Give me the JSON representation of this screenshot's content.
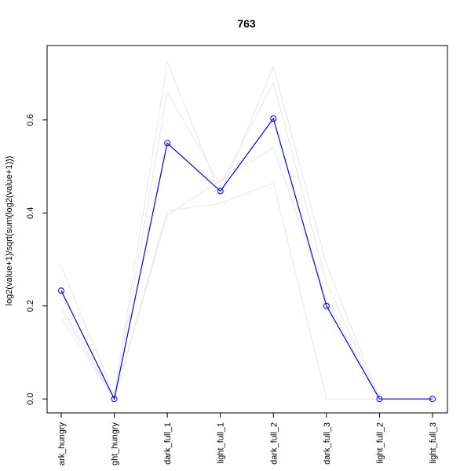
{
  "chart_data": {
    "type": "line",
    "title": "763",
    "xlabel": "",
    "ylabel": "log2(value+1)/sqrt(sum(log2(value+1)))",
    "categories": [
      "dark_hungry",
      "light_hungry",
      "dark_full_1",
      "light_full_1",
      "dark_full_2",
      "dark_full_3",
      "light_full_2",
      "light_full_3"
    ],
    "category_labels": [
      "ark_hungry",
      "ght_hungry",
      "dark_full_1",
      "light_full_1",
      "dark_full_2",
      "dark_full_3",
      "light_full_2",
      "light_full_3"
    ],
    "ylim": [
      -0.03,
      0.76
    ],
    "yticks": [
      0.0,
      0.2,
      0.4,
      0.6
    ],
    "ytick_labels": [
      "0.0",
      "0.2",
      "0.4",
      "0.6"
    ],
    "grid": false,
    "legend": "none",
    "series": [
      {
        "role": "main",
        "color": "#0000ff",
        "marker": "open-circle",
        "values": [
          0.233,
          0.0,
          0.55,
          0.447,
          0.603,
          0.2,
          0.0,
          0.0
        ]
      },
      {
        "role": "background",
        "color": "#e8e8e8",
        "values": [
          0.285,
          0.01,
          0.725,
          0.44,
          0.715,
          0.29,
          0.0,
          0.0
        ]
      },
      {
        "role": "background",
        "color": "#e8e8e8",
        "values": [
          0.19,
          0.0,
          0.66,
          0.46,
          0.68,
          0.25,
          0.0,
          0.0
        ]
      },
      {
        "role": "background",
        "color": "#e8e8e8",
        "values": [
          0.175,
          0.0,
          0.405,
          0.42,
          0.465,
          0.0,
          0.0,
          0.0
        ]
      },
      {
        "role": "background",
        "color": "#e8e8e8",
        "values": [
          0.2,
          0.0,
          0.395,
          0.47,
          0.54,
          0.215,
          0.0,
          0.0
        ]
      }
    ]
  }
}
